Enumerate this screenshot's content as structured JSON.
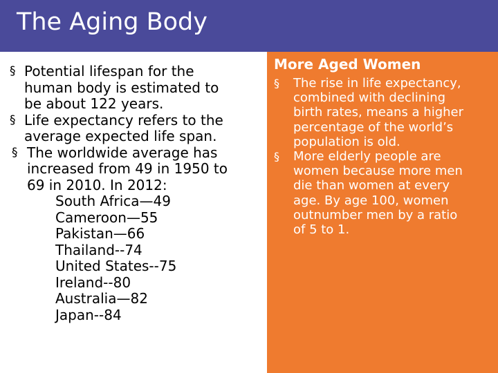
{
  "slide": {
    "title": "The Aging Body"
  },
  "left": {
    "bullet_symbol": "§",
    "bullets": [
      [
        "Potential lifespan for the",
        "human body is estimated to",
        "be about 122 years."
      ],
      [
        "Life expectancy refers to the",
        "average expected life span."
      ],
      [
        "The worldwide average has",
        "increased from 49 in 1950 to",
        "69 in 2010. In 2012:"
      ]
    ],
    "countries": [
      "South Africa—49",
      "Cameroon—55",
      "Pakistan—66",
      "Thailand--74",
      "United States--75",
      "Ireland--80",
      "Australia—82",
      "Japan--84"
    ]
  },
  "right": {
    "heading": "More Aged Women",
    "bullet_symbol": "§",
    "bullets": [
      [
        "The rise in life expectancy,",
        "combined with declining",
        "birth rates, means a higher",
        "percentage of the world’s",
        "population is old."
      ],
      [
        "More elderly people are",
        "women because more men",
        "die than women at every",
        "age. By age 100, women",
        "outnumber men by a ratio",
        "of 5 to 1."
      ]
    ]
  },
  "colors": {
    "title_bar": "#4a4a9a",
    "right_panel": "#ef7b2f",
    "title_text": "#ffffff",
    "body_text": "#000000"
  }
}
